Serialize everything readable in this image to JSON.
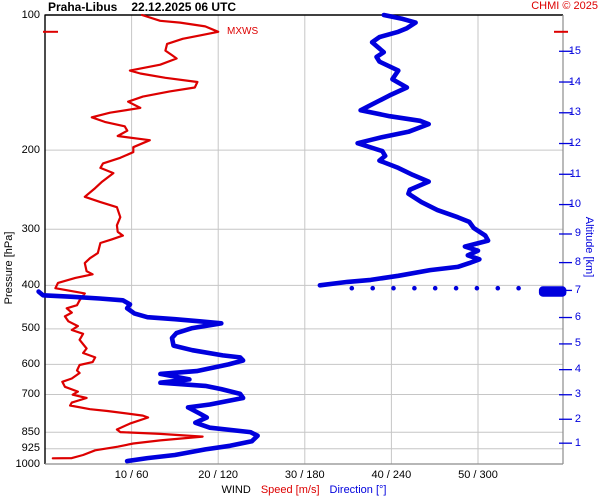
{
  "header": {
    "station": "Praha-Libus",
    "datetime": "22.12.2025 06 UTC",
    "copyright": "CHMI © 2025"
  },
  "legend": {
    "wind": "WIND",
    "speed": "Speed [m/s]",
    "direction": "Direction [°]"
  },
  "annotations": {
    "mxws_label": "MXWS",
    "mxws_pressure_hpa": 109,
    "mxws_speed_ms": 20
  },
  "colors": {
    "speed_curve": "#dd0000",
    "direction_curve": "#0000dd",
    "grid": "#c6c6c6",
    "frame_dark": "#000000",
    "frame_light": "#8c8c8c",
    "text": "#000000"
  },
  "chart_data": {
    "type": "line",
    "title": "Praha-Libus 22.12.2025 06 UTC",
    "y_axis_left": {
      "label": "Pressure [hPa]",
      "scale": "log",
      "range": [
        100,
        1000
      ],
      "ticks": [
        100,
        200,
        300,
        400,
        500,
        600,
        700,
        850,
        925,
        1000
      ]
    },
    "y_axis_right": {
      "label": "Altitude [km]",
      "ticks": [
        1,
        2,
        3,
        4,
        5,
        6,
        7,
        8,
        9,
        10,
        11,
        12,
        13,
        14,
        15
      ]
    },
    "x_axis": {
      "label": "WIND  Speed [m/s]  Direction [°]",
      "speed_range": [
        0,
        60
      ],
      "direction_range": [
        0,
        360
      ],
      "ticks": [
        {
          "speed": 10,
          "direction": 60,
          "label": "10 / 60"
        },
        {
          "speed": 20,
          "direction": 120,
          "label": "20 / 120"
        },
        {
          "speed": 30,
          "direction": 180,
          "label": "30 / 180"
        },
        {
          "speed": 40,
          "direction": 240,
          "label": "40 / 240"
        },
        {
          "speed": 50,
          "direction": 300,
          "label": "50 / 300"
        }
      ]
    },
    "grid": true,
    "series": [
      {
        "name": "Speed [m/s]",
        "axis": "speed",
        "style": "solid thin",
        "points_pressure_value": [
          [
            100,
            11.2
          ],
          [
            103,
            13.3
          ],
          [
            104,
            15.6
          ],
          [
            106,
            18.5
          ],
          [
            109,
            20
          ],
          [
            111,
            17.9
          ],
          [
            113,
            15.9
          ],
          [
            116,
            14.1
          ],
          [
            120,
            13.9
          ],
          [
            123,
            14.7
          ],
          [
            125,
            15.2
          ],
          [
            129,
            13.3
          ],
          [
            133,
            9.8
          ],
          [
            135,
            11
          ],
          [
            138,
            13.9
          ],
          [
            141,
            17.6
          ],
          [
            145,
            17.3
          ],
          [
            148,
            14.4
          ],
          [
            152,
            11.3
          ],
          [
            156,
            9.6
          ],
          [
            161,
            11
          ],
          [
            165,
            7.5
          ],
          [
            169,
            5.4
          ],
          [
            173,
            6.9
          ],
          [
            177,
            9.2
          ],
          [
            181,
            9.5
          ],
          [
            186,
            8.4
          ],
          [
            190,
            12.1
          ],
          [
            197,
            10.2
          ],
          [
            202,
            10.2
          ],
          [
            208,
            8.7
          ],
          [
            214,
            6.7
          ],
          [
            219,
            6.4
          ],
          [
            225,
            7.9
          ],
          [
            235,
            6.6
          ],
          [
            243,
            5.8
          ],
          [
            254,
            4.6
          ],
          [
            261,
            6.4
          ],
          [
            268,
            8.3
          ],
          [
            282,
            8.7
          ],
          [
            294,
            8.3
          ],
          [
            304,
            8.4
          ],
          [
            310,
            9
          ],
          [
            316,
            7.7
          ],
          [
            322,
            6.4
          ],
          [
            339,
            6.1
          ],
          [
            348,
            5.2
          ],
          [
            357,
            4.6
          ],
          [
            372,
            4.8
          ],
          [
            378,
            5.5
          ],
          [
            385,
            3.5
          ],
          [
            395,
            1.5
          ],
          [
            406,
            1.2
          ],
          [
            417,
            4.6
          ],
          [
            432,
            4
          ],
          [
            443,
            3.7
          ],
          [
            450,
            2.5
          ],
          [
            460,
            3.1
          ],
          [
            469,
            2.3
          ],
          [
            481,
            2.7
          ],
          [
            493,
            3.8
          ],
          [
            503,
            3.1
          ],
          [
            513,
            4.4
          ],
          [
            529,
            4
          ],
          [
            553,
            4.8
          ],
          [
            566,
            4.4
          ],
          [
            579,
            5.8
          ],
          [
            593,
            5.5
          ],
          [
            602,
            4
          ],
          [
            619,
            3.7
          ],
          [
            627,
            4
          ],
          [
            645,
            3.1
          ],
          [
            656,
            2
          ],
          [
            673,
            2.3
          ],
          [
            690,
            3.8
          ],
          [
            701,
            3.2
          ],
          [
            713,
            4.8
          ],
          [
            730,
            3.1
          ],
          [
            741,
            2.9
          ],
          [
            755,
            5.2
          ],
          [
            762,
            7.2
          ],
          [
            780,
            11.3
          ],
          [
            788,
            11.9
          ],
          [
            813,
            9.8
          ],
          [
            838,
            8.3
          ],
          [
            849,
            8.7
          ],
          [
            857,
            13.3
          ],
          [
            869,
            18.2
          ],
          [
            886,
            13.3
          ],
          [
            900,
            10.2
          ],
          [
            915,
            8.4
          ],
          [
            932,
            5.8
          ],
          [
            955,
            4.4
          ],
          [
            970,
            3.1
          ],
          [
            971,
            0.9
          ]
        ]
      },
      {
        "name": "Direction [°] (upper branch)",
        "axis": "direction",
        "style": "solid thick",
        "points_pressure_value": [
          [
            100,
            235
          ],
          [
            102,
            248
          ],
          [
            104,
            257
          ],
          [
            107,
            251
          ],
          [
            109,
            245
          ],
          [
            112,
            232
          ],
          [
            115,
            227
          ],
          [
            121,
            235
          ],
          [
            124,
            230
          ],
          [
            127,
            232
          ],
          [
            133,
            245
          ],
          [
            139,
            241
          ],
          [
            145,
            251
          ],
          [
            151,
            239
          ],
          [
            154,
            234
          ],
          [
            160,
            224
          ],
          [
            163,
            219
          ],
          [
            168,
            239
          ],
          [
            172,
            260
          ],
          [
            175,
            266
          ],
          [
            182,
            252
          ],
          [
            187,
            234
          ],
          [
            193,
            217
          ],
          [
            201,
            234
          ],
          [
            206,
            236
          ],
          [
            211,
            232
          ],
          [
            219,
            245
          ],
          [
            227,
            255
          ],
          [
            235,
            266
          ],
          [
            245,
            253
          ],
          [
            250,
            252
          ],
          [
            261,
            261
          ],
          [
            272,
            272
          ],
          [
            282,
            286
          ],
          [
            289,
            294
          ],
          [
            298,
            297
          ],
          [
            310,
            305
          ],
          [
            318,
            307
          ],
          [
            328,
            291
          ],
          [
            335,
            300
          ],
          [
            343,
            293
          ],
          [
            350,
            301
          ],
          [
            357,
            294
          ],
          [
            364,
            286
          ],
          [
            370,
            267
          ],
          [
            381,
            245
          ],
          [
            389,
            226
          ],
          [
            393,
            210
          ],
          [
            400,
            191
          ]
        ]
      },
      {
        "name": "Direction [°] (lower branch)",
        "axis": "direction",
        "style": "solid thick",
        "points_pressure_value": [
          [
            413,
            -3
          ],
          [
            421,
            0
          ],
          [
            424,
            19
          ],
          [
            428,
            39
          ],
          [
            432,
            55
          ],
          [
            441,
            60
          ],
          [
            450,
            58
          ],
          [
            462,
            63
          ],
          [
            471,
            72
          ],
          [
            476,
            91
          ],
          [
            481,
            108
          ],
          [
            486,
            123
          ],
          [
            498,
            103
          ],
          [
            511,
            92
          ],
          [
            524,
            89
          ],
          [
            545,
            90
          ],
          [
            558,
            103
          ],
          [
            573,
            124
          ],
          [
            579,
            136
          ],
          [
            588,
            138
          ],
          [
            600,
            128
          ],
          [
            621,
            106
          ],
          [
            630,
            81
          ],
          [
            648,
            101
          ],
          [
            659,
            81
          ],
          [
            670,
            112
          ],
          [
            681,
            123
          ],
          [
            698,
            136
          ],
          [
            713,
            138
          ],
          [
            737,
            115
          ],
          [
            748,
            100
          ],
          [
            772,
            108
          ],
          [
            788,
            113
          ],
          [
            809,
            105
          ],
          [
            830,
            115
          ],
          [
            849,
            143
          ],
          [
            865,
            148
          ],
          [
            890,
            144
          ],
          [
            911,
            129
          ],
          [
            928,
            112
          ],
          [
            955,
            91
          ],
          [
            970,
            72
          ],
          [
            985,
            58
          ]
        ]
      }
    ],
    "direction_dotted_connector": {
      "pressure": 406,
      "dir_from": 213,
      "dir_to": 328,
      "n_dots": 9
    },
    "direction_wrap_blob": {
      "pressure_from": 402,
      "pressure_to": 424,
      "dir_from": 342,
      "dir_to": 361
    }
  }
}
